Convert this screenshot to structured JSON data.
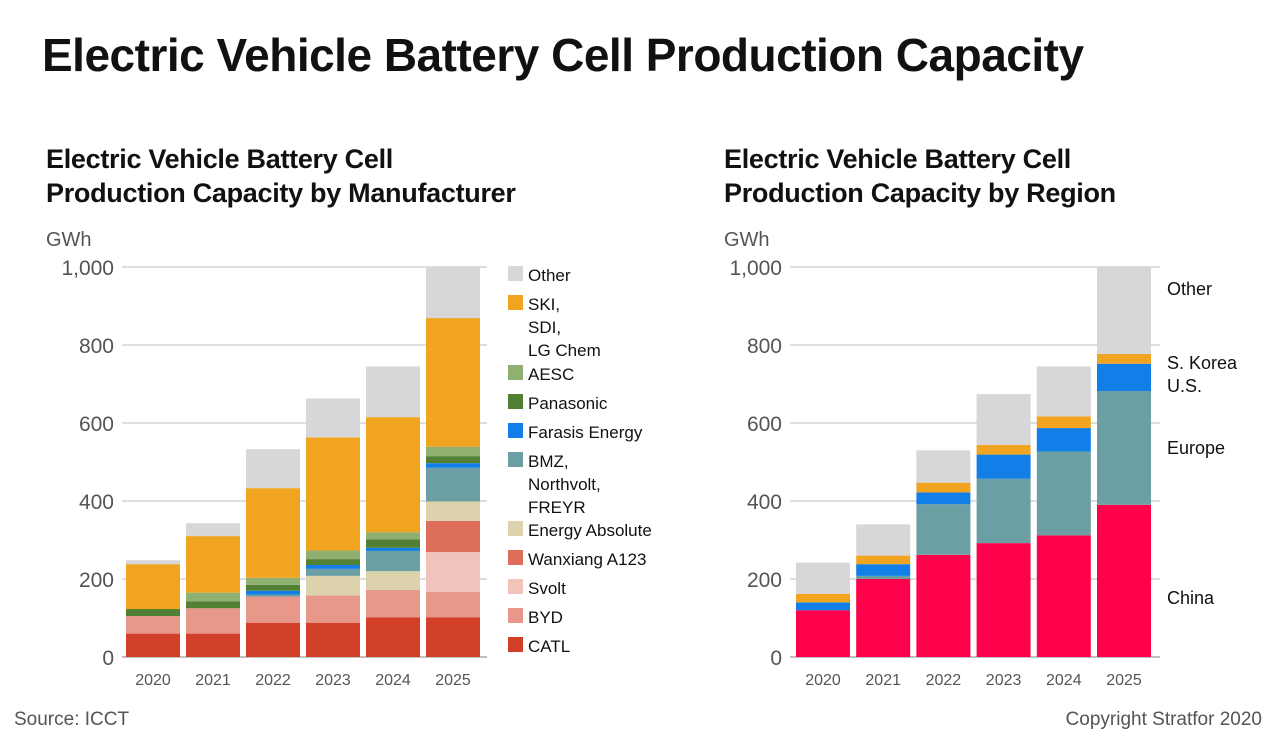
{
  "main_title": "Electric Vehicle Battery Cell Production Capacity",
  "source": "Source: ICCT",
  "copyright": "Copyright Stratfor 2020",
  "chart_data": [
    {
      "type": "bar",
      "stacked": true,
      "title_lines": [
        "Electric Vehicle Battery Cell",
        "Production Capacity by Manufacturer"
      ],
      "ylabel": "GWh",
      "ylim": [
        0,
        1000
      ],
      "yticks": [
        0,
        200,
        400,
        600,
        800,
        1000
      ],
      "ytick_labels": [
        "0",
        "200",
        "400",
        "600",
        "800",
        "1,000"
      ],
      "grid": true,
      "legend_position": "right",
      "categories": [
        "2020",
        "2021",
        "2022",
        "2023",
        "2024",
        "2025"
      ],
      "series": [
        {
          "name": "CATL",
          "label_lines": [
            "CATL"
          ],
          "color": "#d2402a",
          "values": [
            60,
            60,
            88,
            88,
            102,
            102
          ]
        },
        {
          "name": "BYD",
          "label_lines": [
            "BYD"
          ],
          "color": "#e8988a",
          "values": [
            45,
            65,
            67,
            70,
            70,
            65
          ]
        },
        {
          "name": "Svolt",
          "label_lines": [
            "Svolt"
          ],
          "color": "#f0c4ba",
          "values": [
            0,
            0,
            0,
            0,
            0,
            102
          ]
        },
        {
          "name": "Wanxiang A123",
          "label_lines": [
            "Wanxiang A123"
          ],
          "color": "#dd6f5a",
          "values": [
            0,
            0,
            0,
            0,
            0,
            80
          ]
        },
        {
          "name": "Energy Absolute",
          "label_lines": [
            "Energy Absolute"
          ],
          "color": "#dcd3ad",
          "values": [
            0,
            0,
            0,
            50,
            48,
            50
          ]
        },
        {
          "name": "BMZ, Northvolt, FREYR",
          "label_lines": [
            "BMZ,",
            "Northvolt,",
            "FREYR"
          ],
          "color": "#6b9fa4",
          "values": [
            0,
            0,
            5,
            18,
            52,
            86
          ]
        },
        {
          "name": "Farasis Energy",
          "label_lines": [
            "Farasis Energy"
          ],
          "color": "#127fe8",
          "values": [
            0,
            0,
            10,
            10,
            8,
            12
          ]
        },
        {
          "name": "Panasonic",
          "label_lines": [
            "Panasonic"
          ],
          "color": "#517f33",
          "values": [
            18,
            18,
            15,
            15,
            22,
            18
          ]
        },
        {
          "name": "AESC",
          "label_lines": [
            "AESC"
          ],
          "color": "#8fb071",
          "values": [
            0,
            22,
            18,
            22,
            18,
            24
          ]
        },
        {
          "name": "SKI, SDI, LG Chem",
          "label_lines": [
            "SKI,",
            "SDI,",
            "LG Chem"
          ],
          "color": "#f0a420",
          "values": [
            115,
            145,
            230,
            290,
            295,
            330
          ]
        },
        {
          "name": "Other",
          "label_lines": [
            "Other"
          ],
          "color": "#d7d7d9",
          "values": [
            10,
            33,
            100,
            100,
            130,
            133
          ]
        }
      ]
    },
    {
      "type": "bar",
      "stacked": true,
      "title_lines": [
        "Electric Vehicle Battery Cell",
        "Production Capacity by Region"
      ],
      "ylabel": "GWh",
      "ylim": [
        0,
        1000
      ],
      "yticks": [
        0,
        200,
        400,
        600,
        800,
        1000
      ],
      "ytick_labels": [
        "0",
        "200",
        "400",
        "600",
        "800",
        "1,000"
      ],
      "grid": true,
      "legend_position": "right",
      "categories": [
        "2020",
        "2021",
        "2022",
        "2023",
        "2024",
        "2025"
      ],
      "series": [
        {
          "name": "China",
          "label_lines": [
            "China"
          ],
          "color": "#ff004b",
          "values": [
            120,
            200,
            262,
            292,
            312,
            390
          ]
        },
        {
          "name": "Europe",
          "label_lines": [
            "Europe"
          ],
          "color": "#6b9fa4",
          "values": [
            0,
            8,
            130,
            165,
            215,
            292
          ]
        },
        {
          "name": "U.S.",
          "label_lines": [
            "U.S."
          ],
          "color": "#127fe8",
          "values": [
            20,
            30,
            30,
            62,
            60,
            70
          ]
        },
        {
          "name": "S. Korea",
          "label_lines": [
            "S. Korea"
          ],
          "color": "#f0a420",
          "values": [
            22,
            22,
            25,
            25,
            30,
            25
          ]
        },
        {
          "name": "Other",
          "label_lines": [
            "Other"
          ],
          "color": "#d7d7d9",
          "values": [
            80,
            80,
            83,
            130,
            128,
            225
          ]
        }
      ]
    }
  ]
}
